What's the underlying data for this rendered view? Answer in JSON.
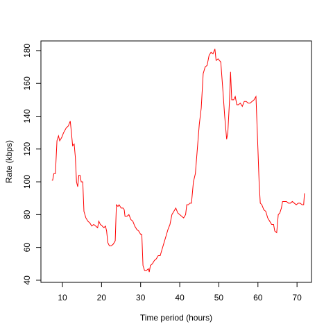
{
  "chart_data": {
    "type": "line",
    "x_label": "Time period (hours)",
    "y_label": "Rate (kbps)",
    "x": [
      7.3,
      7.5,
      7.8,
      8.2,
      8.6,
      9,
      9.3,
      9.8,
      10.3,
      11,
      11.5,
      12,
      12.3,
      12.6,
      13,
      13.3,
      13.6,
      13.9,
      14.2,
      14.5,
      14.8,
      15.2,
      15.5,
      16,
      16.5,
      17,
      17.5,
      18,
      18.5,
      19,
      19.3,
      19.7,
      20.2,
      20.6,
      21,
      21.3,
      21.6,
      22,
      22.5,
      23,
      23.5,
      23.8,
      24.2,
      24.5,
      25,
      25.5,
      25.8,
      26,
      26.5,
      27,
      27.5,
      28,
      28.5,
      29,
      29.5,
      30,
      30.3,
      30.6,
      31,
      31.5,
      32,
      32.2,
      32.5,
      33,
      33.5,
      34,
      34.5,
      35,
      35.5,
      36,
      36.5,
      37,
      37.5,
      38,
      38.5,
      39,
      39.5,
      40,
      40.5,
      41,
      41.5,
      41.8,
      42.2,
      42.6,
      43,
      43.5,
      44,
      44.5,
      45,
      45.5,
      46,
      46.5,
      47,
      47.5,
      48,
      48.5,
      49,
      49.3,
      49.8,
      50.5,
      51,
      51.5,
      52,
      52.3,
      52.7,
      53,
      53.3,
      53.8,
      54.2,
      54.6,
      55,
      55.5,
      56,
      56.5,
      57,
      57.5,
      58,
      58.5,
      59,
      59.5,
      60,
      60.3,
      60.6,
      61,
      61.5,
      62,
      62.5,
      63,
      63.5,
      64,
      64.3,
      64.8,
      65.2,
      65.6,
      66,
      66.3,
      66.8,
      67.3,
      67.8,
      68.3,
      68.8,
      69.3,
      69.8,
      70.3,
      70.8,
      71.3,
      71.7,
      71.9
    ],
    "series": [
      {
        "name": "Rate",
        "color": "#ff0000",
        "values": [
          101,
          101,
          105,
          105,
          125,
          128,
          125,
          127,
          130,
          133,
          134,
          137,
          130,
          122,
          123,
          115,
          100,
          97,
          104,
          104,
          100,
          100,
          82,
          78,
          76,
          75,
          73,
          74,
          73,
          72,
          76,
          74,
          73,
          72,
          73,
          70,
          63,
          61,
          61,
          62,
          64,
          86,
          85,
          86,
          84,
          84,
          83,
          79,
          79,
          80,
          77,
          76,
          73,
          71,
          70,
          68,
          68,
          49,
          46,
          46,
          47,
          45,
          49,
          50,
          52,
          53,
          55,
          55,
          59,
          63,
          67,
          71,
          74,
          80,
          82,
          84,
          81,
          80,
          79,
          78,
          80,
          86,
          86,
          87,
          87,
          100,
          105,
          120,
          135,
          145,
          166,
          170,
          171,
          177,
          179,
          178,
          181,
          174,
          175,
          173,
          157,
          140,
          126,
          130,
          148,
          167,
          150,
          150,
          152,
          147,
          147,
          148,
          146,
          149,
          149,
          148,
          148,
          149,
          150,
          152,
          120,
          100,
          87,
          86,
          83,
          82,
          78,
          76,
          74,
          74,
          70,
          69,
          80,
          81,
          84,
          88,
          88,
          88,
          87,
          87,
          88,
          87,
          86,
          87,
          87,
          86,
          86,
          93
        ]
      }
    ],
    "xlim": [
      4.5,
      73.7
    ],
    "ylim": [
      38.7,
      185.9
    ],
    "xticks": [
      10,
      20,
      30,
      40,
      50,
      60,
      70
    ],
    "yticks": [
      40,
      60,
      80,
      100,
      120,
      140,
      160,
      180
    ]
  }
}
